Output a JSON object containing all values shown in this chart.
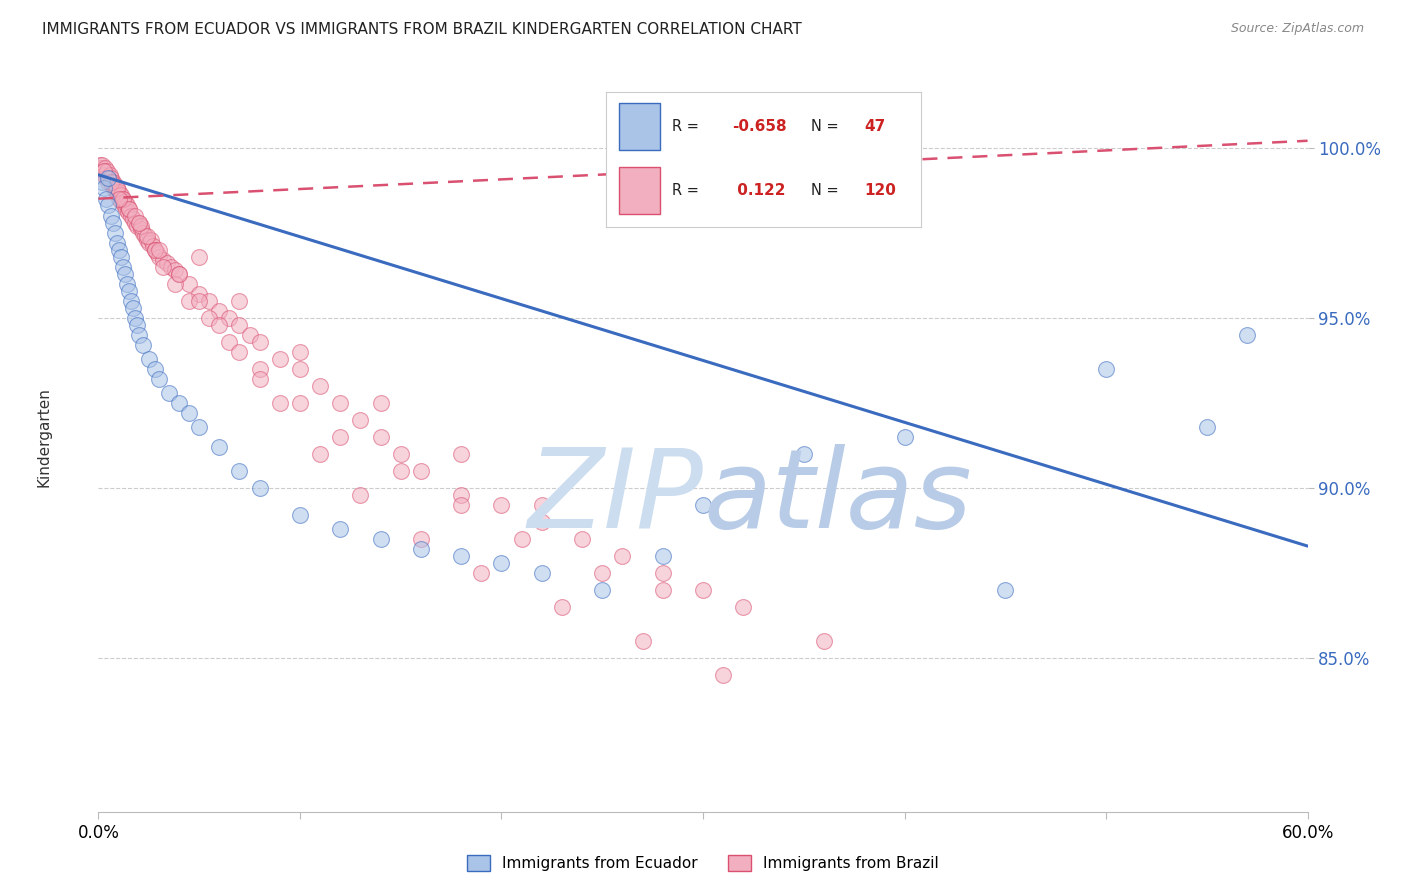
{
  "title": "IMMIGRANTS FROM ECUADOR VS IMMIGRANTS FROM BRAZIL KINDERGARTEN CORRELATION CHART",
  "source": "Source: ZipAtlas.com",
  "ylabel_label": "Kindergarten",
  "xmin": 0.0,
  "xmax": 60.0,
  "ymin": 80.5,
  "ymax": 102.5,
  "ecuador_R": -0.658,
  "ecuador_N": 47,
  "brazil_R": 0.122,
  "brazil_N": 120,
  "ecuador_color": "#aac4e8",
  "ecuador_line_color": "#3a6bbf",
  "brazil_color": "#f2afc0",
  "brazil_line_color": "#d95070",
  "watermark_zip_color": "#c8ddf0",
  "watermark_atlas_color": "#b0cce8",
  "ecuador_line_x0": 0.0,
  "ecuador_line_y0": 99.2,
  "ecuador_line_x1": 60.0,
  "ecuador_line_y1": 88.3,
  "brazil_line_x0": 0.0,
  "brazil_line_y0": 98.5,
  "brazil_line_x1": 60.0,
  "brazil_line_y1": 100.2,
  "ecuador_scatter_x": [
    0.2,
    0.3,
    0.4,
    0.5,
    0.6,
    0.7,
    0.8,
    0.9,
    1.0,
    1.1,
    1.2,
    1.3,
    1.4,
    1.5,
    1.6,
    1.7,
    1.8,
    1.9,
    2.0,
    2.2,
    2.5,
    2.8,
    3.0,
    3.5,
    4.0,
    4.5,
    5.0,
    6.0,
    7.0,
    8.0,
    10.0,
    12.0,
    14.0,
    16.0,
    18.0,
    20.0,
    22.0,
    25.0,
    28.0,
    30.0,
    35.0,
    40.0,
    45.0,
    50.0,
    55.0,
    57.0,
    0.5
  ],
  "ecuador_scatter_y": [
    99.0,
    98.8,
    98.5,
    98.3,
    98.0,
    97.8,
    97.5,
    97.2,
    97.0,
    96.8,
    96.5,
    96.3,
    96.0,
    95.8,
    95.5,
    95.3,
    95.0,
    94.8,
    94.5,
    94.2,
    93.8,
    93.5,
    93.2,
    92.8,
    92.5,
    92.2,
    91.8,
    91.2,
    90.5,
    90.0,
    89.2,
    88.8,
    88.5,
    88.2,
    88.0,
    87.8,
    87.5,
    87.0,
    88.0,
    89.5,
    91.0,
    91.5,
    87.0,
    93.5,
    91.8,
    94.5,
    99.1
  ],
  "brazil_scatter_x": [
    0.1,
    0.15,
    0.2,
    0.25,
    0.3,
    0.35,
    0.4,
    0.45,
    0.5,
    0.55,
    0.6,
    0.65,
    0.7,
    0.75,
    0.8,
    0.85,
    0.9,
    0.95,
    1.0,
    1.05,
    1.1,
    1.15,
    1.2,
    1.25,
    1.3,
    1.35,
    1.4,
    1.45,
    1.5,
    1.6,
    1.7,
    1.8,
    1.9,
    2.0,
    2.1,
    2.2,
    2.3,
    2.4,
    2.5,
    2.6,
    2.7,
    2.8,
    2.9,
    3.0,
    3.2,
    3.4,
    3.6,
    3.8,
    4.0,
    4.5,
    5.0,
    5.5,
    6.0,
    6.5,
    7.0,
    7.5,
    8.0,
    9.0,
    10.0,
    11.0,
    12.0,
    13.0,
    14.0,
    15.0,
    16.0,
    18.0,
    20.0,
    22.0,
    24.0,
    26.0,
    28.0,
    30.0,
    5.0,
    7.0,
    10.0,
    14.0,
    18.0,
    22.0,
    0.3,
    0.6,
    0.9,
    1.2,
    1.5,
    1.8,
    2.1,
    2.4,
    2.8,
    3.2,
    3.8,
    4.5,
    5.5,
    6.5,
    8.0,
    10.0,
    12.0,
    15.0,
    18.0,
    21.0,
    25.0,
    28.0,
    32.0,
    36.0,
    1.0,
    2.0,
    3.0,
    4.0,
    5.0,
    6.0,
    7.0,
    8.0,
    9.0,
    11.0,
    13.0,
    16.0,
    19.0,
    23.0,
    27.0,
    31.0
  ],
  "brazil_scatter_y": [
    99.5,
    99.4,
    99.5,
    99.3,
    99.2,
    99.4,
    99.1,
    99.3,
    99.0,
    99.2,
    99.1,
    98.9,
    99.0,
    98.8,
    98.9,
    98.7,
    98.8,
    98.6,
    98.7,
    98.5,
    98.6,
    98.4,
    98.5,
    98.3,
    98.4,
    98.2,
    98.3,
    98.1,
    98.2,
    98.0,
    97.9,
    97.8,
    97.7,
    97.8,
    97.6,
    97.5,
    97.4,
    97.3,
    97.2,
    97.3,
    97.1,
    97.0,
    96.9,
    96.8,
    96.7,
    96.6,
    96.5,
    96.4,
    96.3,
    96.0,
    95.7,
    95.5,
    95.2,
    95.0,
    94.8,
    94.5,
    94.3,
    93.8,
    93.5,
    93.0,
    92.5,
    92.0,
    91.5,
    91.0,
    90.5,
    89.8,
    89.5,
    89.0,
    88.5,
    88.0,
    87.5,
    87.0,
    96.8,
    95.5,
    94.0,
    92.5,
    91.0,
    89.5,
    99.3,
    99.0,
    98.8,
    98.5,
    98.2,
    98.0,
    97.7,
    97.4,
    97.0,
    96.5,
    96.0,
    95.5,
    95.0,
    94.3,
    93.5,
    92.5,
    91.5,
    90.5,
    89.5,
    88.5,
    87.5,
    87.0,
    86.5,
    85.5,
    98.5,
    97.8,
    97.0,
    96.3,
    95.5,
    94.8,
    94.0,
    93.2,
    92.5,
    91.0,
    89.8,
    88.5,
    87.5,
    86.5,
    85.5,
    84.5
  ]
}
